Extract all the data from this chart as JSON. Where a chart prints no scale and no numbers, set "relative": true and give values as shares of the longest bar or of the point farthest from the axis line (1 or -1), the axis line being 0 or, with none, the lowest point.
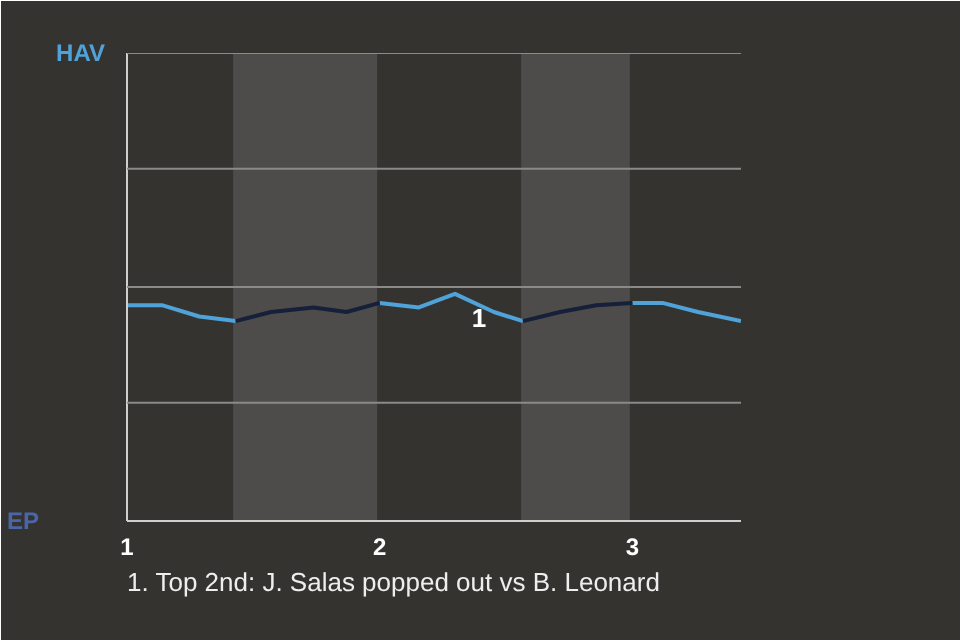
{
  "chart_data": {
    "type": "line",
    "relative": true,
    "x": [
      1.0,
      1.138,
      1.286,
      1.43,
      1.57,
      1.738,
      1.869,
      2.0,
      2.155,
      2.298,
      2.452,
      2.567,
      2.714,
      2.857,
      3.0,
      3.119,
      3.26,
      3.43
    ],
    "series": [
      {
        "color": "#4fa3d8",
        "values": [
          0.95,
          0.95,
          0.9,
          0.88,
          null,
          null,
          null,
          0.96,
          0.94,
          1,
          0.92,
          0.88,
          null,
          null,
          0.96,
          0.96,
          0.92,
          0.88
        ]
      },
      {
        "color": "#16203a",
        "values": [
          null,
          null,
          null,
          0.88,
          0.92,
          0.94,
          0.92,
          0.96,
          null,
          null,
          null,
          0.88,
          0.92,
          0.95,
          0.96,
          null,
          null,
          null
        ]
      }
    ],
    "xlim": [
      1,
      3.43
    ],
    "xticks": [
      1,
      2,
      3
    ],
    "ref_lines": [
      {
        "axis": "y",
        "value": 0.52,
        "color": "#8a8a8a"
      },
      {
        "axis": "y",
        "value": 1.03,
        "color": "#8a8a8a"
      },
      {
        "axis": "y",
        "value": 1.55,
        "color": "#8a8a8a"
      },
      {
        "axis": "y",
        "value": 2.06,
        "color": "#8a8a8a"
      }
    ],
    "bands": [
      {
        "axis": "x",
        "from": 1.42,
        "to": 1.99,
        "color": "#4e4c4a"
      },
      {
        "axis": "x",
        "from": 2.56,
        "to": 2.99,
        "color": "#4e4c4a"
      }
    ],
    "annotations": [
      "HAV",
      "EP",
      "1",
      "1. Top 2nd: J. Salas popped out vs B. Leonard"
    ]
  }
}
